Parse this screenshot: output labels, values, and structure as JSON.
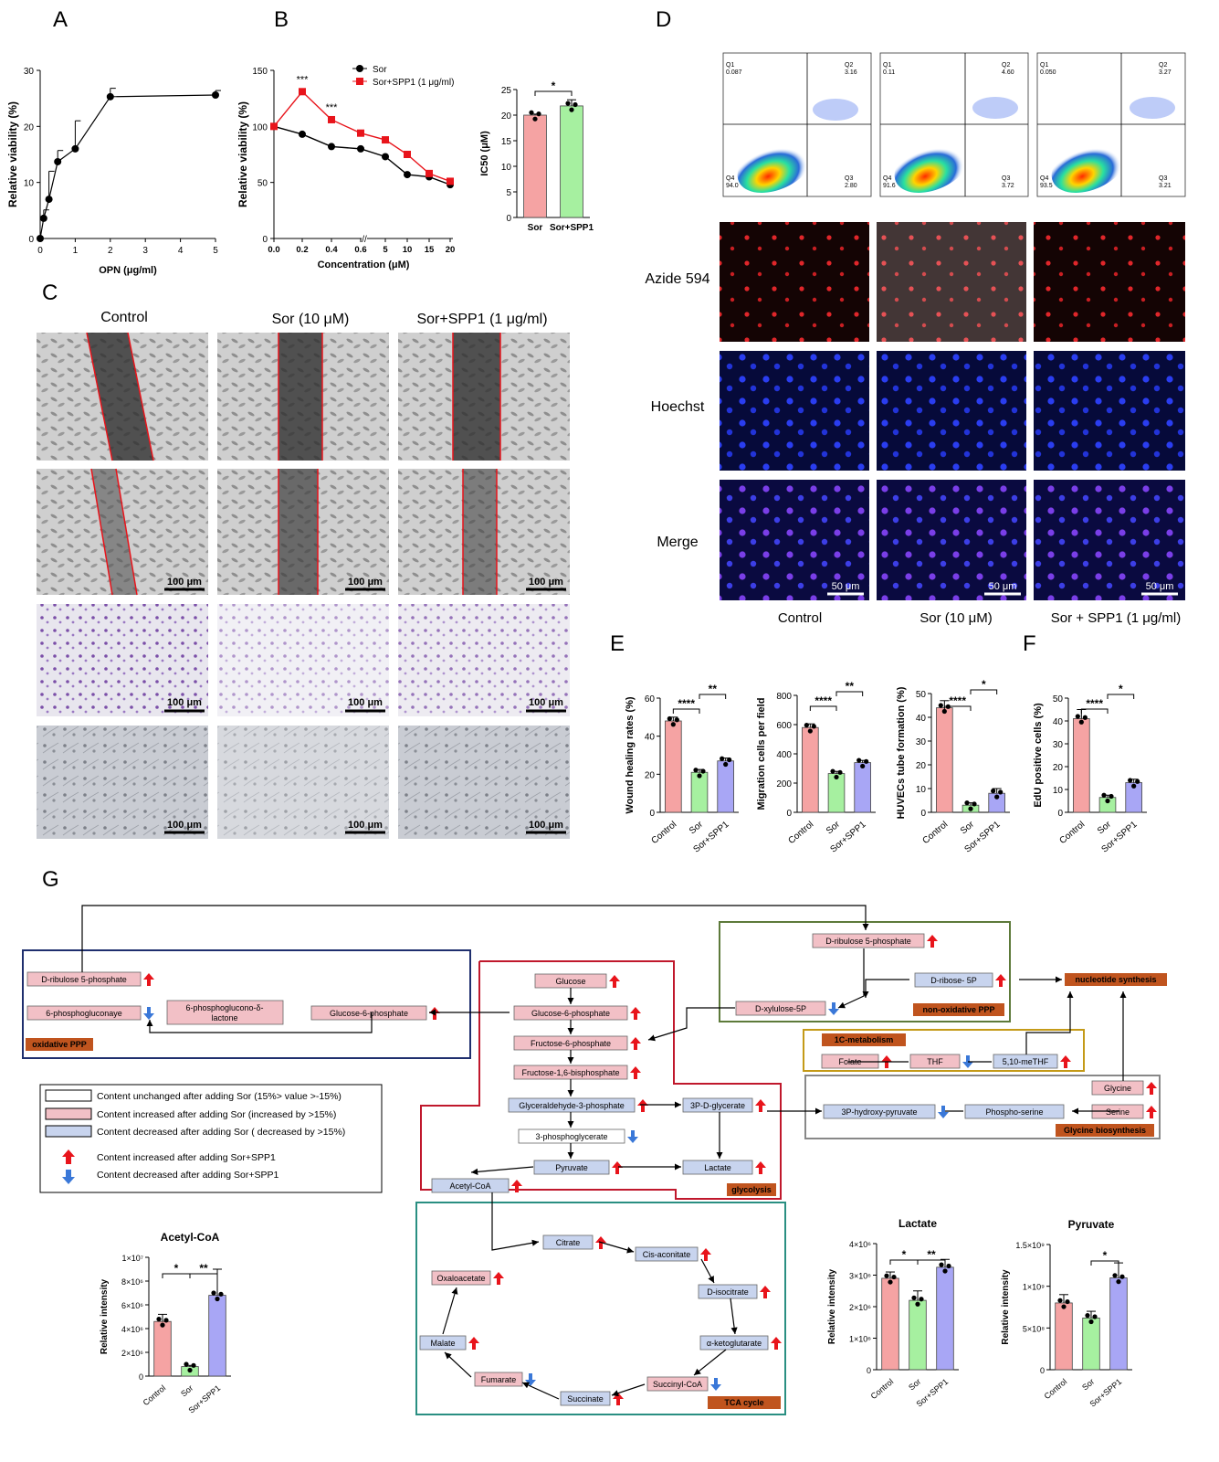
{
  "panels": {
    "A": "A",
    "B": "B",
    "C": "C",
    "D": "D",
    "E": "E",
    "F": "F",
    "G": "G"
  },
  "chart_data": [
    {
      "panel": "A",
      "type": "line",
      "xlabel": "OPN (μg/ml)",
      "ylabel": "Relative viability (%)",
      "xlim": [
        0,
        5
      ],
      "ylim": [
        0,
        30
      ],
      "xticks": [
        "0",
        "1",
        "2",
        "3",
        "4",
        "5"
      ],
      "yticks": [
        "0",
        "10",
        "20",
        "30"
      ],
      "series": [
        {
          "x": [
            0,
            0.1,
            0.25,
            0.5,
            1,
            2,
            5
          ],
          "y": [
            0,
            3.6,
            7,
            13.7,
            16,
            25.3,
            25.6
          ],
          "err": [
            0,
            1.5,
            5,
            2,
            5,
            1.5,
            0.8
          ]
        }
      ]
    },
    {
      "panel": "B-left",
      "type": "line",
      "xlabel": "Concentration (μM)",
      "ylabel": "Relative viability (%)",
      "ylim": [
        0,
        150
      ],
      "xticks": [
        "0.0",
        "0.2",
        "0.4",
        "0.6",
        "5",
        "10",
        "15",
        "20"
      ],
      "yticks": [
        "0",
        "50",
        "100",
        "150"
      ],
      "annotations": [
        "***",
        "***"
      ],
      "series": [
        {
          "name": "Sor",
          "x": [
            "0.0",
            "0.2",
            "0.4",
            "0.6",
            "5",
            "10",
            "15",
            "20"
          ],
          "y": [
            100,
            93,
            82,
            80,
            73,
            57,
            55,
            48
          ],
          "color": "#000000"
        },
        {
          "name": "Sor+SPP1 (1 μg/ml)",
          "x": [
            "0.0",
            "0.2",
            "0.4",
            "0.6",
            "5",
            "10",
            "15",
            "20"
          ],
          "y": [
            100,
            131,
            106,
            94,
            88,
            75,
            58,
            51
          ],
          "color": "#e8141b"
        }
      ]
    },
    {
      "panel": "B-right",
      "type": "bar",
      "ylabel": "IC50 (μM)",
      "ylim": [
        0,
        25
      ],
      "yticks": [
        "0",
        "5",
        "10",
        "15",
        "20",
        "25"
      ],
      "categories": [
        "Sor",
        "Sor+SPP1"
      ],
      "values": [
        20,
        21.8
      ],
      "significance": "*"
    },
    {
      "panel": "E1",
      "type": "bar",
      "ylabel": "Wound healing rates (%)",
      "ylim": [
        0,
        60
      ],
      "yticks": [
        "0",
        "20",
        "40",
        "60"
      ],
      "categories": [
        "Control",
        "Sor",
        "Sor+SPP1"
      ],
      "values": [
        48,
        21,
        27
      ],
      "significance": [
        "****",
        "**"
      ]
    },
    {
      "panel": "E2",
      "type": "bar",
      "ylabel": "Migration cells per field",
      "ylim": [
        0,
        800
      ],
      "yticks": [
        "0",
        "200",
        "400",
        "600",
        "800"
      ],
      "categories": [
        "Control",
        "Sor",
        "Sor+SPP1"
      ],
      "values": [
        580,
        265,
        340
      ],
      "significance": [
        "****",
        "**"
      ]
    },
    {
      "panel": "E3",
      "type": "bar",
      "ylabel": "HUVECs tube formation (%)",
      "ylim": [
        0,
        50
      ],
      "yticks": [
        "0",
        "10",
        "20",
        "30",
        "40",
        "50"
      ],
      "categories": [
        "Control",
        "Sor",
        "Sor+SPP1"
      ],
      "values": [
        44,
        3,
        8
      ],
      "significance": [
        "****",
        "*"
      ]
    },
    {
      "panel": "F",
      "type": "bar",
      "ylabel": "EdU positive cells (%)",
      "ylim": [
        0,
        50
      ],
      "yticks": [
        "0",
        "10",
        "20",
        "30",
        "40",
        "50"
      ],
      "categories": [
        "Control",
        "Sor",
        "Sor+SPP1"
      ],
      "values": [
        41,
        6.5,
        13
      ],
      "significance": [
        "****",
        "*"
      ]
    },
    {
      "panel": "G-acetyl",
      "type": "bar",
      "title": "Acetyl-CoA",
      "ylabel": "Relative intensity",
      "yticks": [
        "0",
        "2×10⁶",
        "4×10⁶",
        "6×10⁶",
        "8×10⁶",
        "1×10⁷"
      ],
      "categories": [
        "Control",
        "Sor",
        "Sor+SPP1"
      ],
      "values": [
        4600000,
        800000,
        6800000
      ],
      "significance": [
        "*",
        "**"
      ]
    },
    {
      "panel": "G-lactate",
      "type": "bar",
      "title": "Lactate",
      "ylabel": "Relative intensity",
      "yticks": [
        "0",
        "1×10⁶",
        "2×10⁶",
        "3×10⁶",
        "4×10⁶"
      ],
      "categories": [
        "Control",
        "Sor",
        "Sor+SPP1"
      ],
      "values": [
        2900000,
        2200000,
        3250000
      ],
      "significance": [
        "*",
        "**"
      ]
    },
    {
      "panel": "G-pyruvate",
      "type": "bar",
      "title": "Pyruvate",
      "ylabel": "Relative intensity",
      "yticks": [
        "0",
        "5×10⁸",
        "1×10⁹",
        "1.5×10⁹"
      ],
      "categories": [
        "Control",
        "Sor",
        "Sor+SPP1"
      ],
      "values": [
        800000000,
        620000000,
        1100000000
      ],
      "significance": [
        "*"
      ]
    }
  ],
  "c_panel": {
    "columns": [
      "Control",
      "Sor (10 μM)",
      "Sor+SPP1 (1 μg/ml)"
    ],
    "scale": "100 μm"
  },
  "d_panel": {
    "flow": [
      {
        "q1": "Q1",
        "q1v": "0.087",
        "q2": "Q2",
        "q2v": "3.16",
        "q3": "Q3",
        "q3v": "2.80",
        "q4": "Q4",
        "q4v": "94.0"
      },
      {
        "q1": "Q1",
        "q1v": "0.11",
        "q2": "Q2",
        "q2v": "4.60",
        "q3": "Q3",
        "q3v": "3.72",
        "q4": "Q4",
        "q4v": "91.6"
      },
      {
        "q1": "Q1",
        "q1v": "0.050",
        "q2": "Q2",
        "q2v": "3.27",
        "q3": "Q3",
        "q3v": "3.21",
        "q4": "Q4",
        "q4v": "93.5"
      }
    ],
    "rows": [
      "Azide 594",
      "Hoechst",
      "Merge"
    ],
    "columns": [
      "Control",
      "Sor (10 μM)",
      "Sor + SPP1 (1 μg/ml)"
    ],
    "scale": "50 μm"
  },
  "pathway": {
    "nodes": {
      "dr5p_top": "D-ribulose 5-phosphate",
      "dr5p_left": "D-ribulose 5-phosphate",
      "pglu": "6-phosphogluconaye",
      "pgl": "6-phosphoglucono-δ-lactone",
      "g6p": "Glucose-6-phosphate",
      "glucose": "Glucose",
      "g6p2": "Glucose-6-phosphate",
      "f6p": "Fructose-6-phosphate",
      "f16bp": "Fructose-1,6-bisphosphate",
      "gap": "Glyceraldehyde-3-phosphate",
      "p3dg": "3P-D-glycerate",
      "pg3": "3-phosphoglycerate",
      "pyruvate": "Pyruvate",
      "lactate": "Lactate",
      "acoa": "Acetyl-CoA",
      "xylulose": "D-xylulose-5P",
      "ribose": "D-ribose- 5P",
      "folate": "Folate",
      "thf": "THF",
      "methf": "5,10-meTHF",
      "hpyr": "3P-hydroxy-pyruvate",
      "pser": "Phospho-serine",
      "serine": "Serine",
      "glycine": "Glycine",
      "citrate": "Citrate",
      "cisacon": "Cis-aconitate",
      "isocit": "D-isocitrate",
      "akg": "α-ketoglutarate",
      "succoa": "Succinyl-CoA",
      "succ": "Succinate",
      "fum": "Fumarate",
      "mal": "Malate",
      "oaa": "Oxaloacetate"
    },
    "labels": {
      "oxppp": "oxidative PPP",
      "nonox": "non-oxidative PPP",
      "nucleotide": "nucleotide synthesis",
      "onec": "1C-metabolism",
      "glycolysis": "glycolysis",
      "glybio": "Glycine biosynthesis",
      "tca": "TCA cycle"
    },
    "legend": [
      "Content unchanged after adding Sor (15%> value >-15%)",
      "Content increased after adding Sor (increased by >15%)",
      "Content decreased after adding Sor ( decreased by >15%)",
      "Content increased after adding Sor+SPP1",
      "Content decreased after adding Sor+SPP1"
    ]
  },
  "colors": {
    "sor_black": "#000000",
    "spp1_red": "#e8141b",
    "control": "#f5a3a3",
    "sor": "#a6f0a0",
    "sorspp1": "#a8a6f5",
    "node_pink": "#f2c0c6",
    "node_blue": "#c8d4ee",
    "label_orange": "#c0541e"
  }
}
